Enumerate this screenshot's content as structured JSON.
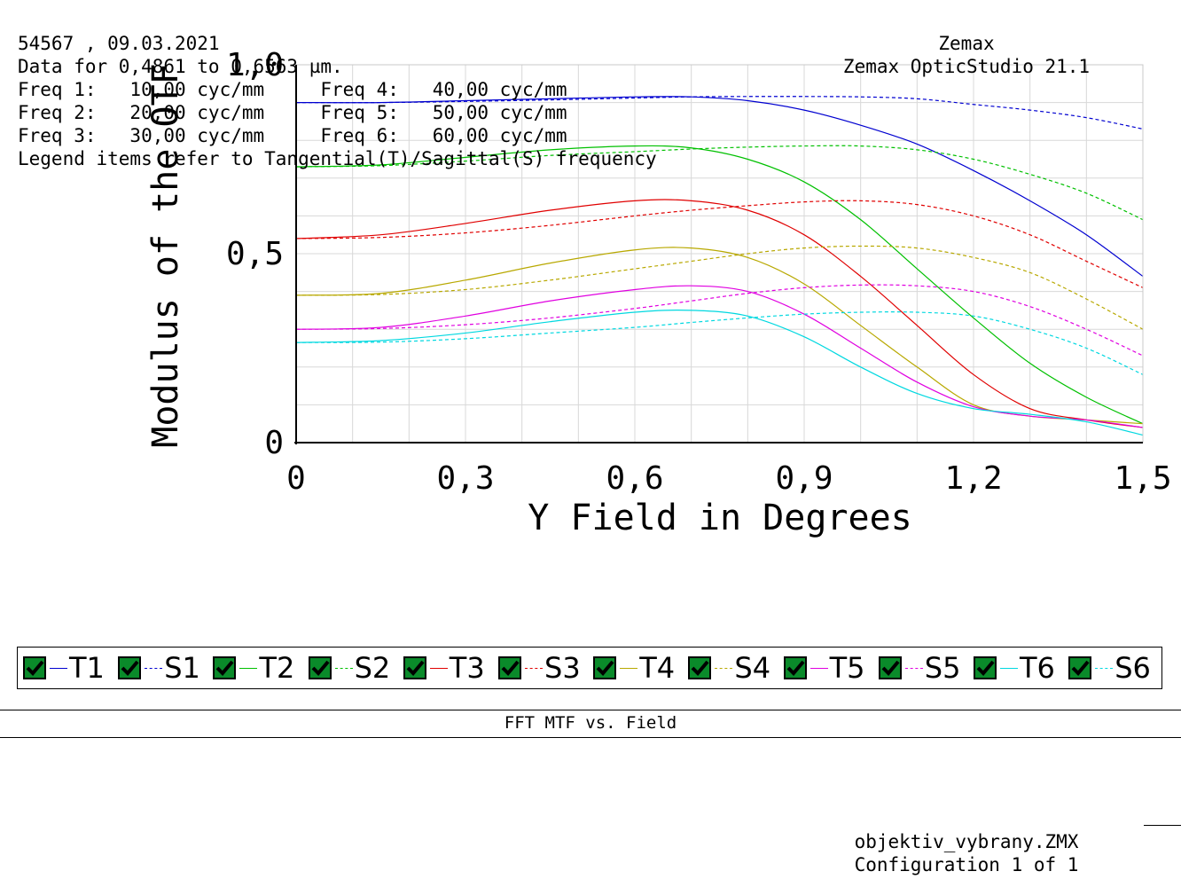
{
  "chart_data": {
    "type": "line",
    "xlabel": "Y Field in Degrees",
    "ylabel": "Modulus of the OTF",
    "xlim": [
      0,
      1.5
    ],
    "ylim": [
      0,
      1.0
    ],
    "x_ticks": [
      "0",
      "0,3",
      "0,6",
      "0,9",
      "1,2",
      "1,5"
    ],
    "y_ticks": [
      "0",
      "0,5",
      "1,0"
    ],
    "grid": true,
    "x": [
      0,
      0.15,
      0.3,
      0.45,
      0.6,
      0.7,
      0.8,
      0.9,
      1.0,
      1.1,
      1.2,
      1.3,
      1.4,
      1.5
    ],
    "series": [
      {
        "name": "T1",
        "color": "#0000d0",
        "dash": false,
        "values": [
          0.9,
          0.9,
          0.905,
          0.91,
          0.915,
          0.915,
          0.905,
          0.88,
          0.84,
          0.79,
          0.72,
          0.64,
          0.55,
          0.44
        ]
      },
      {
        "name": "S1",
        "color": "#0000d0",
        "dash": true,
        "values": [
          0.9,
          0.9,
          0.903,
          0.907,
          0.912,
          0.915,
          0.916,
          0.916,
          0.915,
          0.91,
          0.895,
          0.88,
          0.86,
          0.83
        ]
      },
      {
        "name": "T2",
        "color": "#00c000",
        "dash": false,
        "values": [
          0.73,
          0.735,
          0.755,
          0.775,
          0.785,
          0.78,
          0.75,
          0.69,
          0.59,
          0.46,
          0.33,
          0.21,
          0.12,
          0.05
        ]
      },
      {
        "name": "S2",
        "color": "#00c000",
        "dash": true,
        "values": [
          0.73,
          0.733,
          0.745,
          0.76,
          0.77,
          0.777,
          0.782,
          0.785,
          0.785,
          0.775,
          0.75,
          0.71,
          0.66,
          0.59
        ]
      },
      {
        "name": "T3",
        "color": "#e00000",
        "dash": false,
        "values": [
          0.54,
          0.55,
          0.58,
          0.615,
          0.64,
          0.64,
          0.615,
          0.55,
          0.44,
          0.31,
          0.18,
          0.09,
          0.06,
          0.04
        ]
      },
      {
        "name": "S3",
        "color": "#e00000",
        "dash": true,
        "values": [
          0.54,
          0.543,
          0.555,
          0.575,
          0.6,
          0.615,
          0.627,
          0.637,
          0.64,
          0.63,
          0.6,
          0.55,
          0.48,
          0.41
        ]
      },
      {
        "name": "T4",
        "color": "#b8a800",
        "dash": false,
        "values": [
          0.39,
          0.395,
          0.43,
          0.475,
          0.51,
          0.515,
          0.49,
          0.42,
          0.31,
          0.2,
          0.1,
          0.07,
          0.06,
          0.05
        ]
      },
      {
        "name": "S4",
        "color": "#b8a800",
        "dash": true,
        "values": [
          0.39,
          0.392,
          0.405,
          0.43,
          0.46,
          0.48,
          0.5,
          0.515,
          0.52,
          0.515,
          0.49,
          0.45,
          0.38,
          0.3
        ]
      },
      {
        "name": "T5",
        "color": "#e000e0",
        "dash": false,
        "values": [
          0.3,
          0.305,
          0.335,
          0.375,
          0.405,
          0.415,
          0.4,
          0.34,
          0.25,
          0.16,
          0.095,
          0.07,
          0.06,
          0.04
        ]
      },
      {
        "name": "S5",
        "color": "#e000e0",
        "dash": true,
        "values": [
          0.3,
          0.302,
          0.312,
          0.33,
          0.355,
          0.375,
          0.395,
          0.41,
          0.417,
          0.415,
          0.4,
          0.36,
          0.3,
          0.23
        ]
      },
      {
        "name": "T6",
        "color": "#00d8e0",
        "dash": false,
        "values": [
          0.265,
          0.27,
          0.29,
          0.32,
          0.345,
          0.35,
          0.335,
          0.28,
          0.2,
          0.13,
          0.09,
          0.075,
          0.055,
          0.02
        ]
      },
      {
        "name": "S6",
        "color": "#00d8e0",
        "dash": true,
        "values": [
          0.265,
          0.266,
          0.275,
          0.29,
          0.305,
          0.318,
          0.33,
          0.34,
          0.345,
          0.345,
          0.335,
          0.3,
          0.25,
          0.18
        ]
      }
    ]
  },
  "legend": {
    "items": [
      {
        "label": "T1",
        "color": "#0000d0",
        "dash": false
      },
      {
        "label": "S1",
        "color": "#0000d0",
        "dash": true
      },
      {
        "label": "T2",
        "color": "#00c000",
        "dash": false
      },
      {
        "label": "S2",
        "color": "#00c000",
        "dash": true
      },
      {
        "label": "T3",
        "color": "#e00000",
        "dash": false
      },
      {
        "label": "S3",
        "color": "#e00000",
        "dash": true
      },
      {
        "label": "T4",
        "color": "#b8a800",
        "dash": false
      },
      {
        "label": "S4",
        "color": "#b8a800",
        "dash": true
      },
      {
        "label": "T5",
        "color": "#e000e0",
        "dash": false
      },
      {
        "label": "S5",
        "color": "#e000e0",
        "dash": true
      },
      {
        "label": "T6",
        "color": "#00d8e0",
        "dash": false
      },
      {
        "label": "S6",
        "color": "#00d8e0",
        "dash": true
      }
    ],
    "checked": true
  },
  "info": {
    "title": "FFT MTF vs. Field",
    "date_line": "54567 , 09.03.2021",
    "data_line": "Data for 0,4861 to 0,6563 µm.",
    "freq_lines": [
      "Freq 1:   10,00 cyc/mm     Freq 4:   40,00 cyc/mm",
      "Freq 2:   20,00 cyc/mm     Freq 5:   50,00 cyc/mm",
      "Freq 3:   30,00 cyc/mm     Freq 6:   60,00 cyc/mm"
    ],
    "legend_note": "Legend items refer to Tangential(T)/Sagittal(S) frequency",
    "vendor": "Zemax",
    "product": "Zemax OpticStudio 21.1",
    "file": "objektiv_vybrany.ZMX",
    "config": "Configuration 1 of 1"
  }
}
